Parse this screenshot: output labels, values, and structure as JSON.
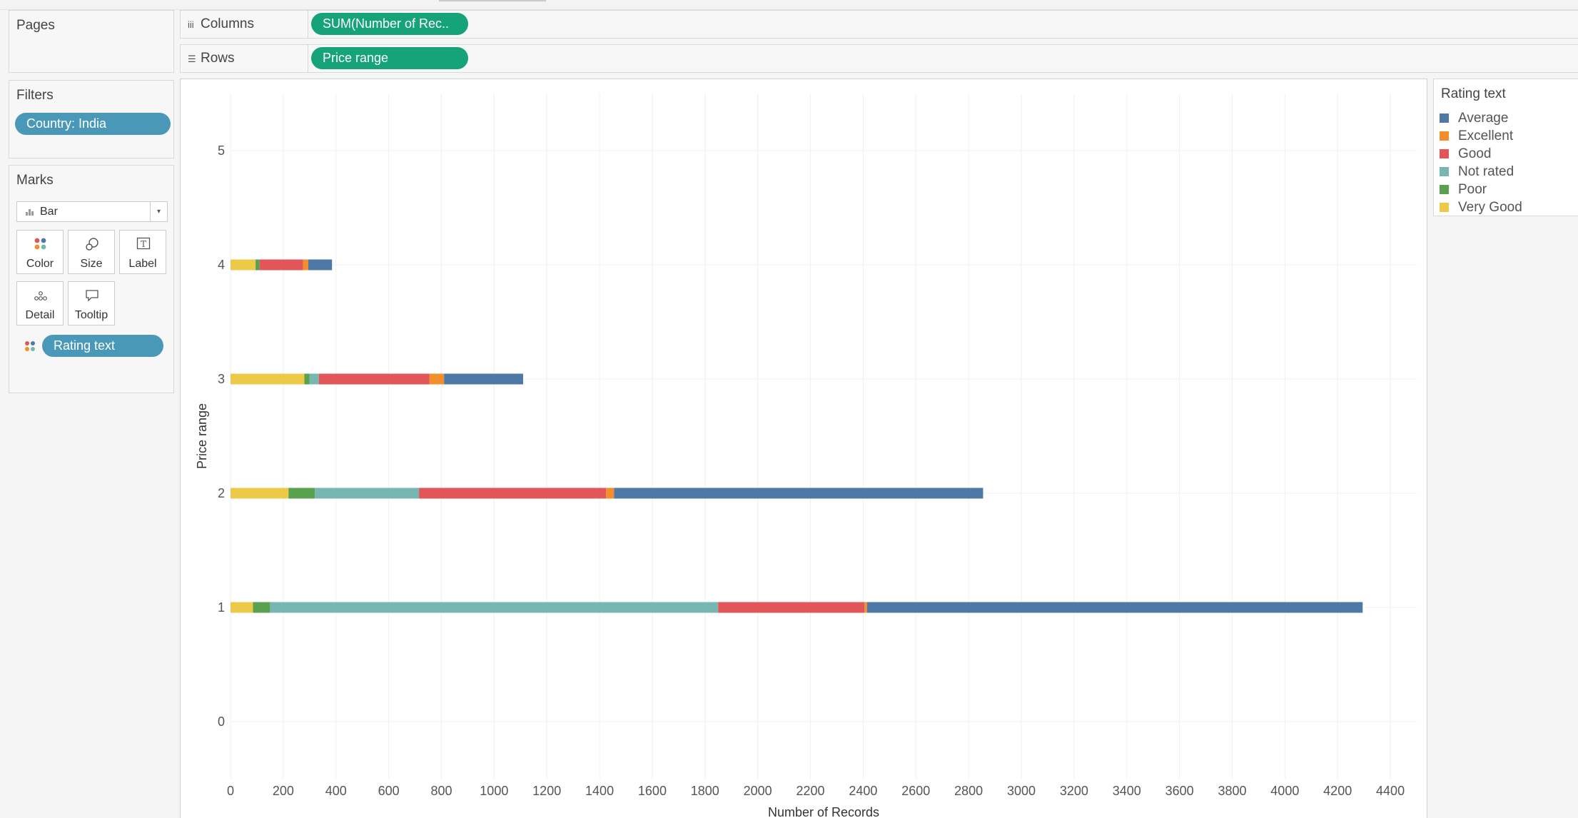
{
  "pages": {
    "title": "Pages"
  },
  "filters": {
    "title": "Filters",
    "pills": [
      "Country: India"
    ]
  },
  "marks": {
    "title": "Marks",
    "mark_type": "Bar",
    "buttons": {
      "color": "Color",
      "size": "Size",
      "label": "Label",
      "detail": "Detail",
      "tooltip": "Tooltip"
    },
    "color_field": "Rating text"
  },
  "shelves": {
    "columns": {
      "label": "Columns",
      "pill": "SUM(Number of Rec.."
    },
    "rows": {
      "label": "Rows",
      "pill": "Price range"
    }
  },
  "legend": {
    "title": "Rating text",
    "items": [
      {
        "label": "Average",
        "color": "#4e79a7"
      },
      {
        "label": "Excellent",
        "color": "#f28e2b"
      },
      {
        "label": "Good",
        "color": "#e15759"
      },
      {
        "label": "Not rated",
        "color": "#76b7b2"
      },
      {
        "label": "Poor",
        "color": "#59a14f"
      },
      {
        "label": "Very Good",
        "color": "#edc948"
      }
    ]
  },
  "chart_data": {
    "type": "bar",
    "orientation": "horizontal",
    "stacked": true,
    "xlabel": "Number of Records",
    "ylabel": "Price range",
    "xlim": [
      0,
      4500
    ],
    "x_ticks": [
      0,
      200,
      400,
      600,
      800,
      1000,
      1200,
      1400,
      1600,
      1800,
      2000,
      2200,
      2400,
      2600,
      2800,
      3000,
      3200,
      3400,
      3600,
      3800,
      4000,
      4200,
      4400
    ],
    "categories": [
      "5",
      "4",
      "3",
      "2",
      "1",
      "0"
    ],
    "grid": true,
    "series": [
      {
        "name": "Very Good",
        "color": "#edc948",
        "values": [
          0,
          95,
          280,
          220,
          85,
          0
        ]
      },
      {
        "name": "Poor",
        "color": "#59a14f",
        "values": [
          0,
          15,
          20,
          100,
          65,
          0
        ]
      },
      {
        "name": "Not rated",
        "color": "#76b7b2",
        "values": [
          0,
          0,
          35,
          395,
          1700,
          0
        ]
      },
      {
        "name": "Good",
        "color": "#e15759",
        "values": [
          0,
          165,
          420,
          710,
          555,
          0
        ]
      },
      {
        "name": "Excellent",
        "color": "#f28e2b",
        "values": [
          0,
          20,
          55,
          30,
          10,
          0
        ]
      },
      {
        "name": "Average",
        "color": "#4e79a7",
        "values": [
          0,
          90,
          300,
          1400,
          1880,
          0
        ]
      }
    ]
  }
}
